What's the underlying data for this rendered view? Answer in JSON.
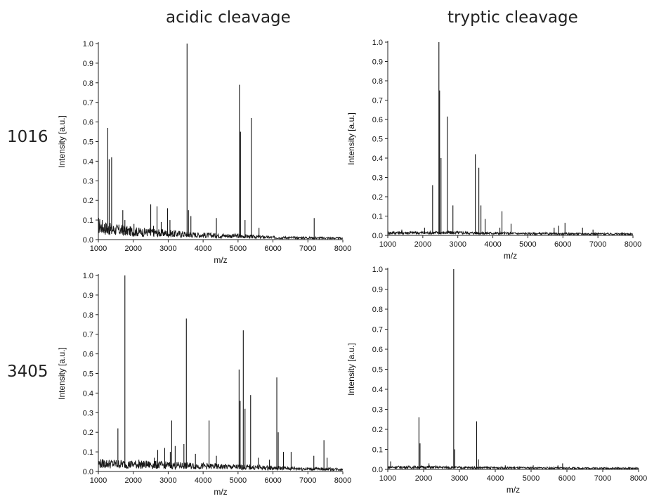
{
  "figure": {
    "column_titles": [
      "acidic cleavage",
      "tryptic cleavage"
    ],
    "row_labels": [
      "1016",
      "3405"
    ]
  },
  "chart_data": [
    {
      "type": "line",
      "panel": "1016 acidic cleavage",
      "xlabel": "m/z",
      "ylabel": "Intensity [a.u.]",
      "xlim": [
        1000,
        8000
      ],
      "ylim": [
        0,
        1.0
      ],
      "xticks": [
        1000,
        2000,
        3000,
        4000,
        5000,
        6000,
        7000,
        8000
      ],
      "yticks": [
        0.0,
        0.1,
        0.2,
        0.3,
        0.4,
        0.5,
        0.6,
        0.7,
        0.8,
        0.9,
        1.0
      ],
      "baseline": [
        [
          1000,
          0.08
        ],
        [
          1300,
          0.06
        ],
        [
          2000,
          0.045
        ],
        [
          3000,
          0.035
        ],
        [
          4000,
          0.025
        ],
        [
          5000,
          0.02
        ],
        [
          6000,
          0.012
        ],
        [
          7000,
          0.01
        ],
        [
          8000,
          0.008
        ]
      ],
      "peaks": [
        [
          1270,
          0.57
        ],
        [
          1310,
          0.41
        ],
        [
          1380,
          0.42
        ],
        [
          1700,
          0.15
        ],
        [
          1760,
          0.1
        ],
        [
          2020,
          0.08
        ],
        [
          2500,
          0.18
        ],
        [
          2580,
          0.07
        ],
        [
          2680,
          0.17
        ],
        [
          2800,
          0.09
        ],
        [
          2980,
          0.16
        ],
        [
          3050,
          0.1
        ],
        [
          3540,
          1.0
        ],
        [
          3580,
          0.15
        ],
        [
          3650,
          0.12
        ],
        [
          4380,
          0.11
        ],
        [
          5040,
          0.79
        ],
        [
          5070,
          0.55
        ],
        [
          5200,
          0.1
        ],
        [
          5380,
          0.62
        ],
        [
          5600,
          0.06
        ],
        [
          7180,
          0.11
        ]
      ]
    },
    {
      "type": "line",
      "panel": "1016 tryptic cleavage",
      "xlabel": "m/z",
      "ylabel": "Intensity [a.u.]",
      "xlim": [
        1000,
        8000
      ],
      "ylim": [
        0,
        1.0
      ],
      "xticks": [
        1000,
        2000,
        3000,
        4000,
        5000,
        6000,
        7000,
        8000
      ],
      "yticks": [
        0.0,
        0.1,
        0.2,
        0.3,
        0.4,
        0.5,
        0.6,
        0.7,
        0.8,
        0.9,
        1.0
      ],
      "baseline": [
        [
          1000,
          0.015
        ],
        [
          3000,
          0.015
        ],
        [
          5000,
          0.01
        ],
        [
          8000,
          0.008
        ]
      ],
      "peaks": [
        [
          1400,
          0.03
        ],
        [
          2050,
          0.04
        ],
        [
          2280,
          0.26
        ],
        [
          2460,
          1.0
        ],
        [
          2480,
          0.75
        ],
        [
          2520,
          0.4
        ],
        [
          2700,
          0.615
        ],
        [
          2860,
          0.155
        ],
        [
          3500,
          0.42
        ],
        [
          3600,
          0.35
        ],
        [
          3660,
          0.155
        ],
        [
          3780,
          0.085
        ],
        [
          4200,
          0.04
        ],
        [
          4260,
          0.125
        ],
        [
          4520,
          0.06
        ],
        [
          5750,
          0.04
        ],
        [
          5880,
          0.05
        ],
        [
          6060,
          0.065
        ],
        [
          6560,
          0.04
        ],
        [
          6860,
          0.03
        ]
      ]
    },
    {
      "type": "line",
      "panel": "3405 acidic cleavage",
      "xlabel": "m/z",
      "ylabel": "Intensity [a.u.]",
      "xlim": [
        1000,
        8000
      ],
      "ylim": [
        0,
        1.0
      ],
      "xticks": [
        1000,
        2000,
        3000,
        4000,
        5000,
        6000,
        7000,
        8000
      ],
      "yticks": [
        0.0,
        0.1,
        0.2,
        0.3,
        0.4,
        0.5,
        0.6,
        0.7,
        0.8,
        0.9,
        1.0
      ],
      "baseline": [
        [
          1000,
          0.045
        ],
        [
          2000,
          0.04
        ],
        [
          3000,
          0.035
        ],
        [
          4000,
          0.03
        ],
        [
          5000,
          0.025
        ],
        [
          6000,
          0.02
        ],
        [
          7000,
          0.015
        ],
        [
          8000,
          0.012
        ]
      ],
      "peaks": [
        [
          1560,
          0.22
        ],
        [
          1760,
          1.0
        ],
        [
          2160,
          0.06
        ],
        [
          2600,
          0.07
        ],
        [
          2700,
          0.11
        ],
        [
          2900,
          0.12
        ],
        [
          3060,
          0.1
        ],
        [
          3100,
          0.26
        ],
        [
          3200,
          0.13
        ],
        [
          3450,
          0.14
        ],
        [
          3520,
          0.78
        ],
        [
          3780,
          0.09
        ],
        [
          4170,
          0.26
        ],
        [
          4380,
          0.08
        ],
        [
          5030,
          0.52
        ],
        [
          5060,
          0.36
        ],
        [
          5150,
          0.72
        ],
        [
          5200,
          0.32
        ],
        [
          5360,
          0.39
        ],
        [
          5580,
          0.07
        ],
        [
          5900,
          0.06
        ],
        [
          6110,
          0.48
        ],
        [
          6150,
          0.2
        ],
        [
          6300,
          0.1
        ],
        [
          6520,
          0.1
        ],
        [
          7170,
          0.08
        ],
        [
          7460,
          0.16
        ],
        [
          7550,
          0.07
        ]
      ]
    },
    {
      "type": "line",
      "panel": "3405 tryptic cleavage",
      "xlabel": "m/z",
      "ylabel": "Intensity [a.u.]",
      "xlim": [
        1000,
        8000
      ],
      "ylim": [
        0,
        1.0
      ],
      "xticks": [
        1000,
        2000,
        3000,
        4000,
        5000,
        6000,
        7000,
        8000
      ],
      "yticks": [
        0.0,
        0.1,
        0.2,
        0.3,
        0.4,
        0.5,
        0.6,
        0.7,
        0.8,
        0.9,
        1.0
      ],
      "baseline": [
        [
          1000,
          0.012
        ],
        [
          2000,
          0.012
        ],
        [
          3000,
          0.01
        ],
        [
          5000,
          0.008
        ],
        [
          8000,
          0.006
        ]
      ],
      "peaks": [
        [
          1080,
          0.04
        ],
        [
          1870,
          0.26
        ],
        [
          1900,
          0.13
        ],
        [
          2150,
          0.03
        ],
        [
          2840,
          1.0
        ],
        [
          2870,
          0.1
        ],
        [
          3480,
          0.24
        ],
        [
          3530,
          0.05
        ],
        [
          4280,
          0.02
        ],
        [
          5060,
          0.02
        ],
        [
          5750,
          0.02
        ],
        [
          5880,
          0.03
        ],
        [
          6560,
          0.01
        ]
      ]
    }
  ]
}
